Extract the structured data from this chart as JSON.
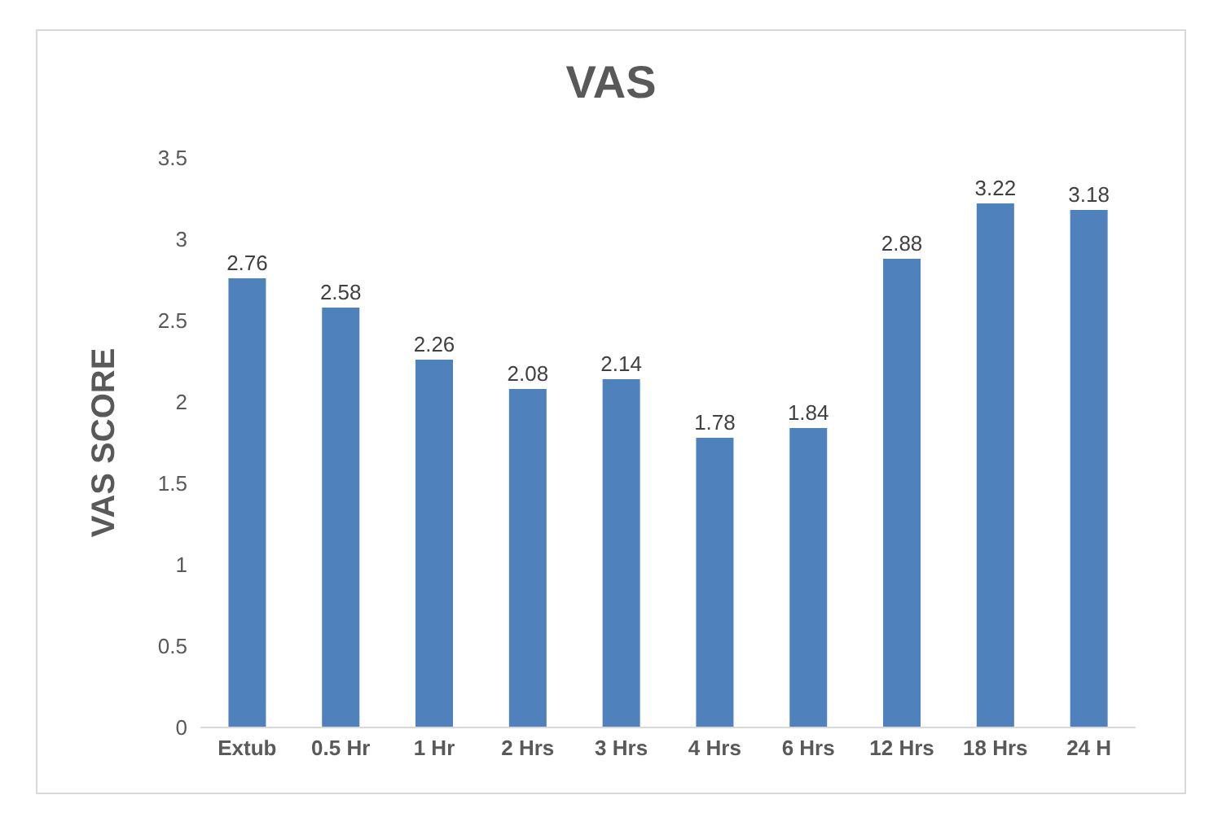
{
  "chart_data": {
    "type": "bar",
    "title": "VAS",
    "ylabel": "VAS SCORE",
    "categories": [
      "Extub",
      "0.5 Hr",
      "1 Hr",
      "2 Hrs",
      "3 Hrs",
      "4 Hrs",
      "6 Hrs",
      "12 Hrs",
      "18 Hrs",
      "24 H"
    ],
    "values": [
      2.76,
      2.58,
      2.26,
      2.08,
      2.14,
      1.78,
      1.84,
      2.88,
      3.22,
      3.18
    ],
    "color": "#4f81bd",
    "ylim": [
      0,
      3.5
    ],
    "yticks": [
      0,
      0.5,
      1,
      1.5,
      2,
      2.5,
      3,
      3.5
    ],
    "data_labels": true
  }
}
